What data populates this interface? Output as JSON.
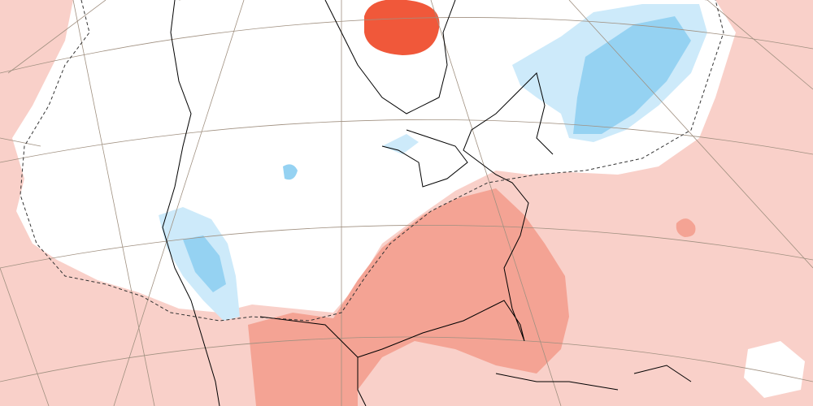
{
  "map": {
    "colors": {
      "light_positive": "#f9d0c9",
      "medium_positive": "#f4a394",
      "strong_positive": "#f0583a",
      "neutral": "#ffffff",
      "light_negative": "#cdeafa",
      "medium_negative": "#95d2f2",
      "coastline": "#000000",
      "graticule": "#a09080",
      "contour": "#333333"
    }
  }
}
